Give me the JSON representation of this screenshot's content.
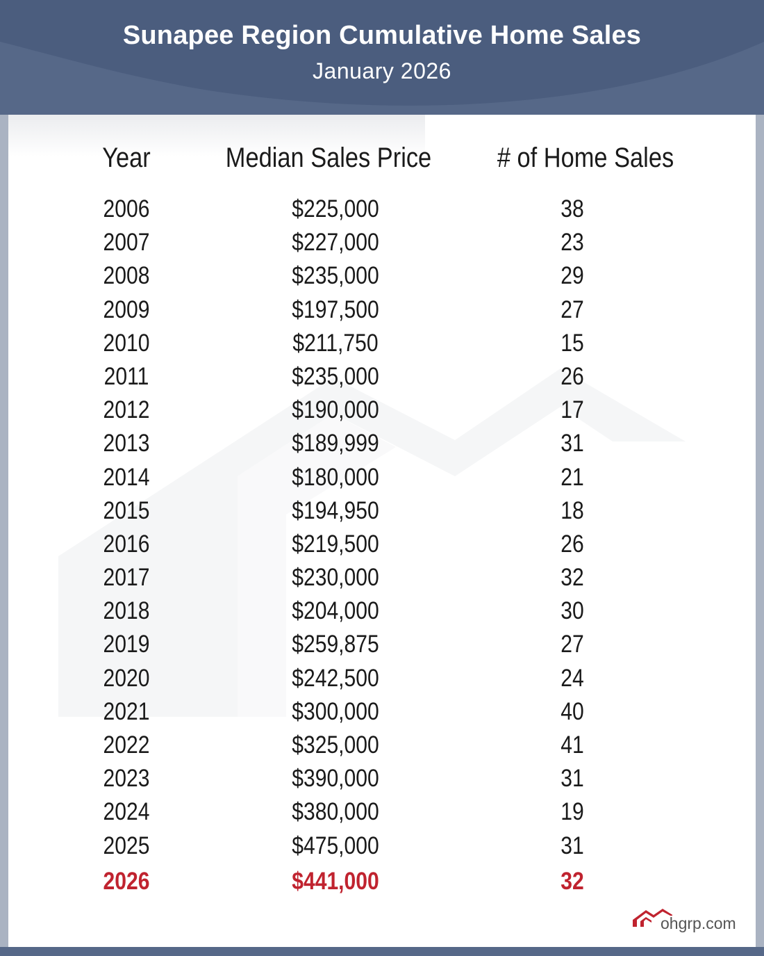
{
  "header": {
    "title": "Sunapee Region Cumulative Home Sales",
    "subtitle": "January 2026"
  },
  "table": {
    "columns": [
      "Year",
      "Median Sales Price",
      "# of Home Sales"
    ],
    "rows": [
      {
        "year": "2006",
        "price": "$225,000",
        "sales": "38"
      },
      {
        "year": "2007",
        "price": "$227,000",
        "sales": "23"
      },
      {
        "year": "2008",
        "price": "$235,000",
        "sales": "29"
      },
      {
        "year": "2009",
        "price": "$197,500",
        "sales": "27"
      },
      {
        "year": "2010",
        "price": "$211,750",
        "sales": "15"
      },
      {
        "year": "2011",
        "price": "$235,000",
        "sales": "26"
      },
      {
        "year": "2012",
        "price": "$190,000",
        "sales": "17"
      },
      {
        "year": "2013",
        "price": "$189,999",
        "sales": "31"
      },
      {
        "year": "2014",
        "price": "$180,000",
        "sales": "21"
      },
      {
        "year": "2015",
        "price": "$194,950",
        "sales": "18"
      },
      {
        "year": "2016",
        "price": "$219,500",
        "sales": "26"
      },
      {
        "year": "2017",
        "price": "$230,000",
        "sales": "32"
      },
      {
        "year": "2018",
        "price": "$204,000",
        "sales": "30"
      },
      {
        "year": "2019",
        "price": "$259,875",
        "sales": "27"
      },
      {
        "year": "2020",
        "price": "$242,500",
        "sales": "24"
      },
      {
        "year": "2021",
        "price": "$300,000",
        "sales": "40"
      },
      {
        "year": "2022",
        "price": "$325,000",
        "sales": "41"
      },
      {
        "year": "2023",
        "price": "$390,000",
        "sales": "31"
      },
      {
        "year": "2024",
        "price": "$380,000",
        "sales": "19"
      },
      {
        "year": "2025",
        "price": "$475,000",
        "sales": "31"
      },
      {
        "year": "2026",
        "price": "$441,000",
        "sales": "32",
        "highlight": true
      }
    ]
  },
  "footer": {
    "logo_text": "ohgrp.com",
    "logo_icon": "house-roof-icon"
  },
  "colors": {
    "header_bg": "#566888",
    "highlight": "#c0232f",
    "logo_red": "#c0232f",
    "frame": "#aab3c2"
  }
}
